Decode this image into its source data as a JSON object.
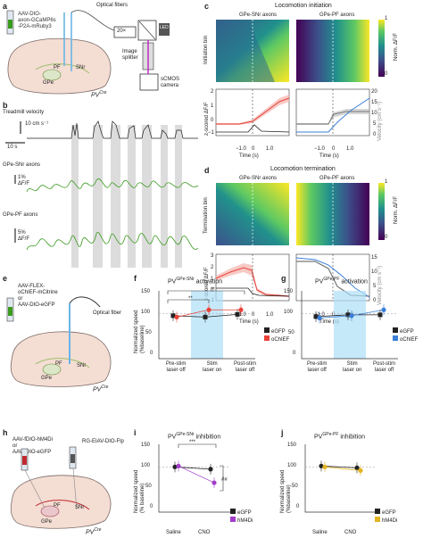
{
  "panels": {
    "a": {
      "label": "a",
      "virus": [
        "AAV-DIO-",
        "axon-GCaMP6s",
        "-P2A-mRuby3"
      ],
      "fibers": "Optical fibers",
      "obj": "20×",
      "splitter": [
        "Image",
        "splitter"
      ],
      "camera": [
        "sCMOS",
        "camera"
      ],
      "led": "LED",
      "pf": "PF",
      "snr": "SNr",
      "gpe": "GPe",
      "pv": "PV",
      "pvsup": "Cre"
    },
    "b": {
      "label": "b",
      "treadmill": "Treadmill velocity",
      "vscale": "10 cm s⁻¹",
      "tscale": "10 s",
      "snr_label": "GPe-SNr axons",
      "snr_scale": [
        "1%",
        "ΔF/F"
      ],
      "pf_label": "GPe-PF axons",
      "pf_scale": [
        "5%",
        "ΔF/F"
      ]
    },
    "c": {
      "label": "c",
      "title": "Locomotion initiation",
      "left": "GPe-SNr axons",
      "right": "GPe-PF axons",
      "ylab": "Initiation bin",
      "cbar_top": "1",
      "cbar_bot": "0",
      "cbar_lab": "Norm. ΔF/F",
      "zlab": "z-scored ΔF/F",
      "vlab": "Velocity (cm s⁻¹)",
      "xlab": "Time (s)",
      "xt": [
        "−1.0",
        "0",
        "1.0"
      ],
      "yl": [
        "2",
        "1",
        "0",
        "−1"
      ],
      "yr": [
        "20",
        "15",
        "10",
        "5",
        "0"
      ]
    },
    "d": {
      "label": "d",
      "title": "Locomotion termination",
      "left": "GPe-SNr axons",
      "right": "GPe-PF axons",
      "ylab": "Termination bin",
      "cbar_top": "1",
      "cbar_bot": "0",
      "cbar_lab": "Norm. ΔF/F",
      "zlab": "z-scored ΔF/F",
      "vlab": "Velocity (cm s⁻¹)",
      "xlab": "Time (s)",
      "xt": [
        "−1.0",
        "0",
        "1.0"
      ],
      "yl": [
        "3",
        "2",
        "1",
        "0",
        "−1"
      ],
      "yr": [
        "15",
        "10",
        "5",
        "0"
      ]
    },
    "e": {
      "label": "e",
      "virus": [
        "AAV-FLEX-",
        "oChIEF-mCitrine",
        "or",
        "AAV-DIO-eGFP"
      ],
      "fiber": "Optical fiber",
      "pf": "PF",
      "snr": "SNr",
      "gpe": "GPe",
      "pv": "PV",
      "pvsup": "Cre"
    },
    "f": {
      "label": "f",
      "title": "PV",
      "titlesup": "GPe-SNr",
      "title2": "activation",
      "ylab": [
        "Normalized speed",
        "(%baseline)"
      ],
      "yt": [
        "150",
        "100",
        "50",
        "0"
      ],
      "xcats": [
        [
          "Pre-stim",
          "laser off"
        ],
        [
          "Stim",
          "laser on"
        ],
        [
          "Post-stim",
          "laser off"
        ]
      ],
      "legend": [
        "eGFP",
        "oChIEF"
      ],
      "sig": [
        "**",
        "**"
      ]
    },
    "g": {
      "label": "g",
      "title": "PV",
      "titlesup": "GPe-PF",
      "title2": "activation",
      "yt": [
        "150",
        "100",
        "50",
        "0"
      ],
      "xcats": [
        [
          "Pre-stim",
          "laser off"
        ],
        [
          "Stim",
          "laser on"
        ],
        [
          "Post-stim",
          "laser off"
        ]
      ],
      "legend": [
        "eGFP",
        "oChIEF"
      ]
    },
    "h": {
      "label": "h",
      "virus": [
        "AAV-fDIO-hM4Di",
        "or",
        "AAV-fDIO-eGFP"
      ],
      "virus2": "RG-EIAV-DIO-Flp",
      "pf": "PF",
      "snr": "SNr",
      "gpe": "GPe",
      "pv": "PV",
      "pvsup": "Cre"
    },
    "i": {
      "label": "i",
      "title": "PV",
      "titlesup": "GPe-SNr",
      "title2": "inhibition",
      "ylab": [
        "Normalized speed",
        "(% baseline)"
      ],
      "yt": [
        "150",
        "100",
        "50",
        "0"
      ],
      "xcats": [
        "Saline",
        "CNO"
      ],
      "legend": [
        "eGFP",
        "hM4Di"
      ],
      "sig": [
        "***",
        "##"
      ]
    },
    "j": {
      "label": "j",
      "title": "PV",
      "titlesup": "GPe-PF",
      "title2": "inhibition",
      "ylab": [
        "Normalized speed",
        "(%baseline)"
      ],
      "yt": [
        "150",
        "100",
        "50",
        "0"
      ],
      "xcats": [
        "Saline",
        "CNO"
      ],
      "legend": [
        "eGFP",
        "hM4Di"
      ]
    }
  },
  "chart_data": [
    {
      "type": "line",
      "panel": "c-left",
      "x": [
        -1.5,
        -1.0,
        -0.5,
        0,
        0.5,
        1.0,
        1.5
      ],
      "series": [
        {
          "values": [
            -0.1,
            -0.1,
            0.0,
            0.4,
            0.9,
            1.4,
            1.6
          ]
        },
        {
          "values": [
            0,
            0,
            0,
            2,
            9,
            14,
            15
          ]
        }
      ],
      "xlim": [
        -1.5,
        1.5
      ],
      "ylim": [
        -1,
        2
      ],
      "y2lim": [
        0,
        20
      ]
    },
    {
      "type": "line",
      "panel": "c-right",
      "x": [
        -1.5,
        -1.0,
        -0.5,
        0,
        0.5,
        1.0,
        1.5
      ],
      "series": [
        {
          "values": [
            -0.1,
            -0.1,
            0.0,
            0.7,
            0.8,
            0.8,
            0.8
          ]
        },
        {
          "values": [
            0,
            0,
            0,
            3,
            9,
            13,
            15
          ]
        }
      ],
      "xlim": [
        -1.5,
        1.5
      ],
      "ylim": [
        -1,
        2
      ],
      "y2lim": [
        0,
        20
      ]
    },
    {
      "type": "line",
      "panel": "d-left",
      "x": [
        -1.5,
        -1.0,
        -0.5,
        0,
        0.5,
        1.0,
        1.5
      ],
      "series": [
        {
          "values": [
            1.2,
            1.6,
            1.9,
            0.3,
            -0.2,
            -0.3,
            -0.3
          ]
        },
        {
          "values": [
            13,
            12,
            10,
            4,
            1,
            0,
            0
          ]
        }
      ],
      "xlim": [
        -1.5,
        1.5
      ],
      "ylim": [
        -1,
        3
      ],
      "y2lim": [
        0,
        15
      ]
    },
    {
      "type": "line",
      "panel": "d-right",
      "x": [
        -1.5,
        -1.0,
        -0.5,
        0,
        0.5,
        1.0,
        1.5
      ],
      "series": [
        {
          "values": [
            2.2,
            2.1,
            1.6,
            0.4,
            -0.3,
            -0.4,
            -0.4
          ]
        },
        {
          "values": [
            15,
            14,
            12,
            8,
            4,
            1,
            0
          ]
        }
      ],
      "xlim": [
        -1.5,
        1.5
      ],
      "ylim": [
        -1,
        3
      ],
      "y2lim": [
        0,
        15
      ]
    },
    {
      "type": "line",
      "panel": "f",
      "categories": [
        "Pre-stim laser off",
        "Stim laser on",
        "Post-stim laser off"
      ],
      "series": [
        {
          "name": "eGFP",
          "values": [
            95,
            92,
            98
          ]
        },
        {
          "name": "oChIEF",
          "values": [
            92,
            108,
            108
          ]
        }
      ],
      "ylim": [
        0,
        150
      ]
    },
    {
      "type": "line",
      "panel": "g",
      "categories": [
        "Pre-stim laser off",
        "Stim laser on",
        "Post-stim laser off"
      ],
      "series": [
        {
          "name": "eGFP",
          "values": [
            93,
            97,
            97
          ]
        },
        {
          "name": "oChIEF",
          "values": [
            90,
            95,
            108
          ]
        }
      ],
      "ylim": [
        0,
        150
      ]
    },
    {
      "type": "line",
      "panel": "i",
      "categories": [
        "Saline",
        "CNO"
      ],
      "series": [
        {
          "name": "eGFP",
          "values": [
            100,
            95
          ]
        },
        {
          "name": "hM4Di",
          "values": [
            102,
            65
          ]
        }
      ],
      "ylim": [
        0,
        150
      ]
    },
    {
      "type": "line",
      "panel": "j",
      "categories": [
        "Saline",
        "CNO"
      ],
      "series": [
        {
          "name": "eGFP",
          "values": [
            102,
            98
          ]
        },
        {
          "name": "hM4Di",
          "values": [
            100,
            92
          ]
        }
      ],
      "ylim": [
        0,
        150
      ]
    }
  ],
  "colors": {
    "green": "#3a9a1e",
    "red": "#e8433a",
    "blue": "#3a7fd8",
    "black": "#222222",
    "purple": "#a23ec9",
    "yellow": "#e2b422",
    "grey": "#d9d9d9",
    "stim": "#aee0f8"
  }
}
